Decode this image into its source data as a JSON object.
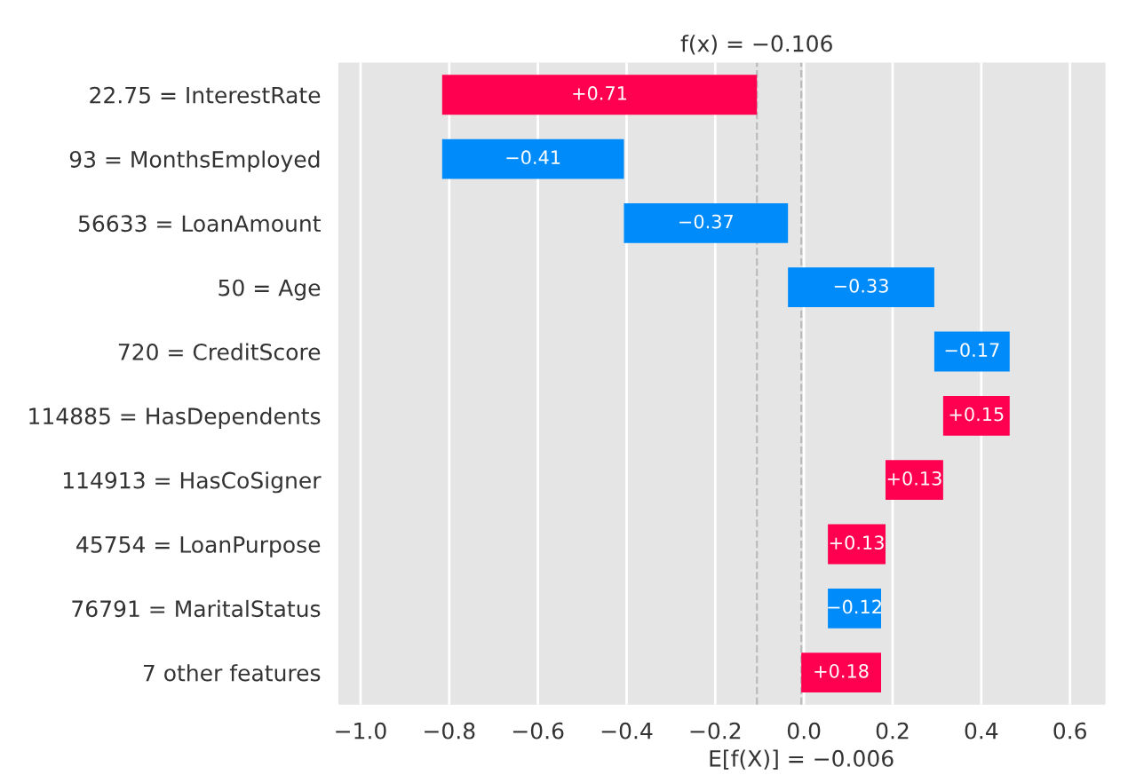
{
  "chart_data": {
    "type": "bar",
    "orientation": "horizontal",
    "categories": [
      "22.75 = InterestRate",
      "93 = MonthsEmployed",
      "56633 = LoanAmount",
      "50 = Age",
      "720 = CreditScore",
      "114885 = HasDependents",
      "114913 = HasCoSigner",
      "45754 = LoanPurpose",
      "76791 = MaritalStatus",
      "7 other features"
    ],
    "values": [
      0.71,
      -0.41,
      -0.37,
      -0.33,
      -0.17,
      0.15,
      0.13,
      0.13,
      -0.12,
      0.18
    ],
    "base": [
      -0.816,
      -0.406,
      -0.036,
      0.294,
      0.464,
      0.314,
      0.184,
      0.054,
      0.174,
      -0.006
    ],
    "colors": [
      "#ff0051",
      "#008bfb",
      "#008bfb",
      "#008bfb",
      "#008bfb",
      "#ff0051",
      "#ff0051",
      "#ff0051",
      "#008bfb",
      "#ff0051"
    ],
    "value_labels": [
      "+0.71",
      "−0.41",
      "−0.37",
      "−0.33",
      "−0.17",
      "+0.15",
      "+0.13",
      "+0.13",
      "−0.12",
      "+0.18"
    ],
    "xlim": [
      -1.05,
      0.68
    ],
    "xticks": [
      {
        "value": -1.0,
        "label": "−1.0"
      },
      {
        "value": -0.8,
        "label": "−0.8"
      },
      {
        "value": -0.6,
        "label": "−0.6"
      },
      {
        "value": -0.4,
        "label": "−0.4"
      },
      {
        "value": -0.2,
        "label": "−0.2"
      },
      {
        "value": 0.0,
        "label": "0.0"
      },
      {
        "value": 0.2,
        "label": "0.2"
      },
      {
        "value": 0.4,
        "label": "0.4"
      },
      {
        "value": 0.6,
        "label": "0.6"
      }
    ],
    "ref_lines": [
      {
        "axis": "x",
        "value": -0.106,
        "label": "f(x) = −0.106",
        "color": "#bbbbbb",
        "line_style": "dashed"
      },
      {
        "axis": "x",
        "value": -0.006,
        "label": "E[f(X)] = −0.006",
        "color": "#bbbbbb",
        "line_style": "dashed"
      }
    ],
    "grid": "x"
  }
}
